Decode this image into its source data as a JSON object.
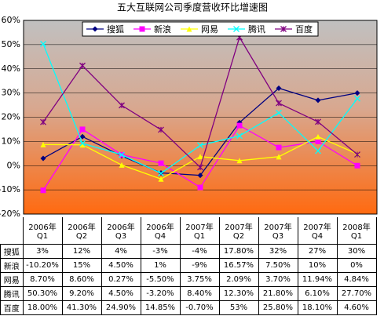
{
  "chart_data": {
    "type": "line",
    "title": "五大互联网公司季度营收环比增速图",
    "categories": [
      "2006年\nQ1",
      "2006年\nQ2",
      "2006年\nQ3",
      "2006年\nQ4",
      "2007年\nQ1",
      "2007年\nQ2",
      "2007年\nQ3",
      "2007年\nQ4",
      "2008年\nQ1"
    ],
    "series": [
      {
        "name": "搜狐",
        "color": "#000080",
        "marker": "diamond",
        "values": [
          3,
          12,
          4,
          -3,
          -4,
          17.8,
          32,
          27,
          30
        ],
        "value_labels": [
          "3%",
          "12%",
          "4%",
          "-3%",
          "-4%",
          "17.80%",
          "32%",
          "27%",
          "30%"
        ]
      },
      {
        "name": "新浪",
        "color": "#ff00ff",
        "marker": "square",
        "values": [
          -10.2,
          15,
          4.5,
          1,
          -9,
          16.57,
          7.5,
          10,
          0
        ],
        "value_labels": [
          "-10.20%",
          "15%",
          "4.50%",
          "1%",
          "-9%",
          "16.57%",
          "7.50%",
          "10%",
          "0%"
        ]
      },
      {
        "name": "网易",
        "color": "#ffff00",
        "marker": "triangle",
        "values": [
          8.7,
          8.6,
          0.27,
          -5.5,
          3.75,
          2.09,
          3.7,
          11.94,
          4.84
        ],
        "value_labels": [
          "8.70%",
          "8.60%",
          "0.27%",
          "-5.50%",
          "3.75%",
          "2.09%",
          "3.70%",
          "11.94%",
          "4.84%"
        ]
      },
      {
        "name": "腾讯",
        "color": "#00ffff",
        "marker": "x",
        "values": [
          50.3,
          9.2,
          4.5,
          -3.2,
          8.4,
          12.3,
          21.8,
          6.1,
          27.7
        ],
        "value_labels": [
          "50.30%",
          "9.20%",
          "4.50%",
          "-3.20%",
          "8.40%",
          "12.30%",
          "21.80%",
          "6.10%",
          "27.70%"
        ]
      },
      {
        "name": "百度",
        "color": "#800080",
        "marker": "star",
        "values": [
          18,
          41.3,
          24.9,
          14.85,
          -0.7,
          53,
          25.8,
          18.1,
          4.6
        ],
        "value_labels": [
          "18.00%",
          "41.30%",
          "24.90%",
          "14.85%",
          "-0.70%",
          "53%",
          "25.80%",
          "18.10%",
          "4.60%"
        ]
      }
    ],
    "ylim": [
      -20,
      60
    ],
    "yticks": [
      {
        "value": -20,
        "label": "-20%"
      },
      {
        "value": -10,
        "label": "-10%"
      },
      {
        "value": 0,
        "label": "0%"
      },
      {
        "value": 10,
        "label": "10%"
      },
      {
        "value": 20,
        "label": "20%"
      },
      {
        "value": 30,
        "label": "30%"
      },
      {
        "value": 40,
        "label": "40%"
      },
      {
        "value": 50,
        "label": "50%"
      },
      {
        "value": 60,
        "label": "60%"
      }
    ],
    "grid": true,
    "legend": "top"
  }
}
